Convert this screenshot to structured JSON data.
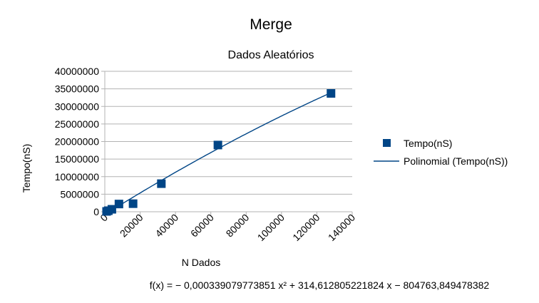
{
  "chart_data": {
    "type": "scatter",
    "title": "Merge",
    "subtitle": "Dados Aleatórios",
    "xlabel": "N Dados",
    "ylabel": "Tempo(nS)",
    "xlim": [
      0,
      140000
    ],
    "ylim": [
      0,
      40000000
    ],
    "x_ticks": [
      "0",
      "20000",
      "40000",
      "60000",
      "80000",
      "100000",
      "120000",
      "140000"
    ],
    "y_ticks": [
      "0",
      "5000000",
      "10000000",
      "15000000",
      "20000000",
      "25000000",
      "30000000",
      "35000000",
      "40000000"
    ],
    "grid": "horizontal",
    "legend_position": "right",
    "series": [
      {
        "name": "Tempo(nS)",
        "marker": "square",
        "color": "#004586",
        "points": [
          {
            "x": 1000,
            "y": 100000
          },
          {
            "x": 2000,
            "y": 300000
          },
          {
            "x": 4000,
            "y": 700000
          },
          {
            "x": 8000,
            "y": 2200000
          },
          {
            "x": 16000,
            "y": 2300000
          },
          {
            "x": 32000,
            "y": 8000000
          },
          {
            "x": 64000,
            "y": 19000000
          },
          {
            "x": 128000,
            "y": 33700000
          }
        ]
      }
    ],
    "trendline": {
      "name": "Polinomial (Tempo(nS))",
      "color": "#004586",
      "coefficients": {
        "a": -0.000339079773851,
        "b": 314.612805221824,
        "c": -804763.849478382
      },
      "equation": "f(x) = − 0,000339079773851 x² + 314,612805221824 x − 804763,849478382"
    }
  }
}
